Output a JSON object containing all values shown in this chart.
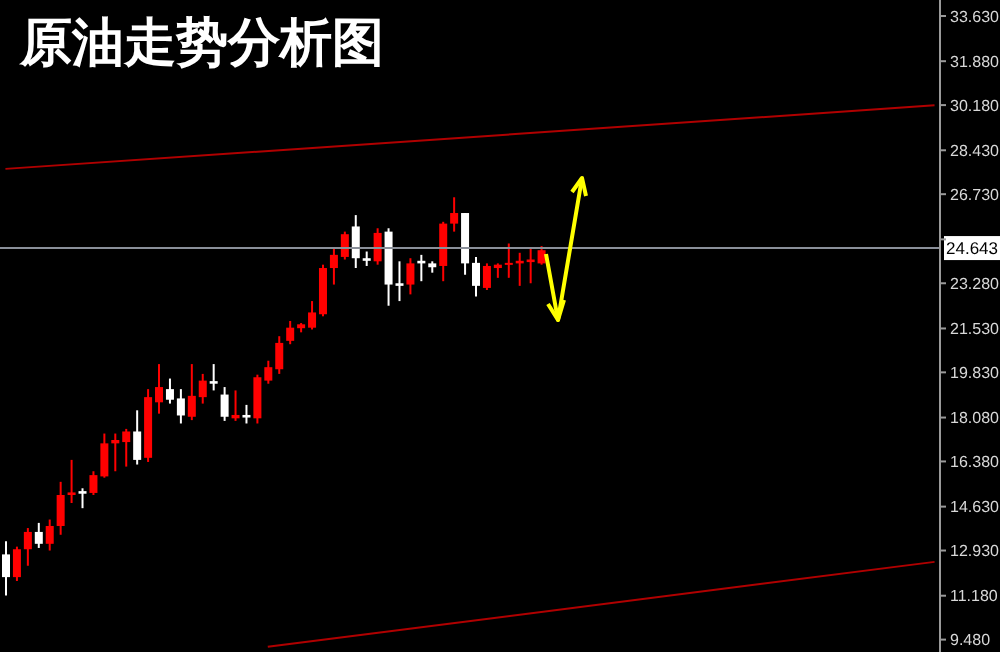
{
  "chart_data": {
    "type": "candlestick",
    "title": "原油走势分析图",
    "categories": [
      null,
      null,
      null,
      null,
      null,
      null,
      null,
      null,
      null,
      null,
      null,
      null,
      null,
      null,
      null,
      null,
      null,
      null,
      null,
      null,
      null,
      null,
      null,
      null,
      null,
      null,
      null,
      null,
      null,
      null,
      null,
      null,
      null,
      null,
      null,
      null,
      null,
      null,
      null,
      null,
      null,
      null,
      null,
      null,
      null,
      null,
      null,
      null,
      null,
      null,
      null,
      null,
      null,
      null,
      null,
      null,
      null,
      null,
      null,
      null,
      null,
      null,
      null,
      null,
      null,
      null,
      null,
      null,
      null,
      null,
      null,
      null,
      null,
      null,
      null,
      null,
      null,
      null,
      null,
      null,
      null,
      null,
      null,
      null,
      null,
      null
    ],
    "ohlc": [
      [
        12.78,
        13.29,
        11.19,
        11.9
      ],
      [
        11.9,
        13.08,
        11.75,
        12.98
      ],
      [
        12.98,
        13.8,
        12.34,
        13.65
      ],
      [
        13.65,
        14.0,
        13.03,
        13.19
      ],
      [
        13.19,
        14.13,
        12.93,
        13.88
      ],
      [
        13.88,
        15.59,
        13.54,
        15.08
      ],
      [
        15.08,
        16.44,
        14.77,
        15.18
      ],
      [
        15.23,
        15.34,
        14.57,
        15.13
      ],
      [
        15.16,
        16.0,
        15.08,
        15.85
      ],
      [
        15.8,
        17.46,
        15.75,
        17.08
      ],
      [
        17.08,
        17.46,
        16.0,
        17.21
      ],
      [
        17.13,
        17.64,
        16.18,
        17.54
      ],
      [
        17.54,
        18.36,
        16.26,
        16.44
      ],
      [
        16.52,
        19.18,
        16.36,
        18.87
      ],
      [
        18.67,
        20.15,
        18.23,
        19.26
      ],
      [
        19.18,
        19.59,
        18.62,
        18.77
      ],
      [
        18.82,
        19.18,
        17.85,
        18.16
      ],
      [
        18.11,
        20.15,
        17.98,
        18.92
      ],
      [
        18.87,
        19.77,
        18.62,
        19.51
      ],
      [
        19.49,
        20.15,
        19.13,
        19.39
      ],
      [
        18.97,
        19.26,
        17.95,
        18.11
      ],
      [
        18.05,
        19.13,
        17.95,
        18.18
      ],
      [
        18.18,
        18.57,
        17.85,
        18.08
      ],
      [
        18.05,
        19.74,
        17.85,
        19.64
      ],
      [
        19.51,
        20.28,
        19.39,
        20.03
      ],
      [
        19.95,
        21.23,
        19.77,
        20.97
      ],
      [
        21.05,
        21.82,
        20.92,
        21.56
      ],
      [
        21.54,
        21.74,
        21.38,
        21.69
      ],
      [
        21.56,
        22.59,
        21.49,
        22.15
      ],
      [
        22.08,
        24.0,
        22.0,
        23.87
      ],
      [
        23.87,
        24.64,
        23.23,
        24.38
      ],
      [
        24.3,
        25.28,
        24.2,
        25.18
      ],
      [
        25.48,
        25.92,
        23.87,
        24.25
      ],
      [
        24.25,
        24.51,
        23.95,
        24.15
      ],
      [
        24.13,
        25.41,
        24.0,
        25.23
      ],
      [
        25.28,
        25.41,
        22.41,
        23.23
      ],
      [
        23.28,
        24.13,
        22.59,
        23.18
      ],
      [
        23.23,
        24.25,
        22.85,
        24.05
      ],
      [
        24.15,
        24.38,
        23.36,
        24.05
      ],
      [
        24.05,
        24.13,
        23.69,
        23.9
      ],
      [
        23.95,
        25.66,
        23.36,
        25.59
      ],
      [
        25.59,
        26.61,
        25.28,
        26.0
      ],
      [
        26.0,
        26.0,
        23.61,
        24.05
      ],
      [
        24.07,
        24.3,
        22.77,
        23.18
      ],
      [
        23.1,
        24.05,
        23.02,
        23.95
      ],
      [
        23.87,
        24.05,
        23.49,
        24.0
      ],
      [
        24.0,
        24.82,
        23.49,
        24.07
      ],
      [
        24.05,
        24.46,
        23.18,
        24.15
      ],
      [
        24.1,
        24.61,
        23.28,
        24.2
      ],
      [
        24.05,
        24.72,
        24.0,
        24.56
      ],
      null,
      null,
      null,
      null,
      null,
      null,
      null,
      null,
      null,
      null,
      null,
      null,
      null,
      null,
      null,
      null,
      null,
      null,
      null,
      null,
      null,
      null,
      null,
      null,
      null,
      null,
      null,
      null,
      null,
      null,
      null,
      null,
      null,
      null,
      null,
      null
    ],
    "colors": [
      "#ffffff",
      "#ff0000",
      "#ff0000",
      "#ffffff",
      "#ff0000",
      "#ff0000",
      "#ff0000",
      "#ffffff",
      "#ff0000",
      "#ff0000",
      "#ff0000",
      "#ff0000",
      "#ffffff",
      "#ff0000",
      "#ff0000",
      "#ffffff",
      "#ffffff",
      "#ff0000",
      "#ff0000",
      "#ffffff",
      "#ffffff",
      "#ff0000",
      "#ffffff",
      "#ff0000",
      "#ff0000",
      "#ff0000",
      "#ff0000",
      "#ff0000",
      "#ff0000",
      "#ff0000",
      "#ff0000",
      "#ff0000",
      "#ffffff",
      "#ffffff",
      "#ff0000",
      "#ffffff",
      "#ffffff",
      "#ff0000",
      "#ffffff",
      "#ffffff",
      "#ff0000",
      "#ff0000",
      "#ffffff",
      "#ffffff",
      "#ff0000",
      "#ff0000",
      "#ff0000",
      "#ff0000",
      "#ff0000",
      "#ff0000",
      null,
      null,
      null,
      null,
      null,
      null,
      null,
      null,
      null,
      null,
      null,
      null,
      null,
      null,
      null,
      null,
      null,
      null,
      null,
      null,
      null,
      null,
      null,
      null,
      null,
      null,
      null,
      null,
      null,
      null,
      null,
      null,
      null,
      null,
      null,
      null
    ],
    "series": [
      {
        "type": "line",
        "color": "#b00000",
        "values": [
          27.71,
          null,
          null,
          null,
          null,
          null,
          null,
          null,
          null,
          null,
          null,
          null,
          null,
          null,
          null,
          null,
          null,
          null,
          null,
          null,
          null,
          null,
          null,
          null,
          null,
          null,
          null,
          null,
          null,
          null,
          null,
          null,
          null,
          null,
          null,
          null,
          null,
          null,
          null,
          null,
          null,
          null,
          null,
          null,
          null,
          null,
          null,
          null,
          null,
          null,
          null,
          null,
          null,
          null,
          null,
          null,
          null,
          null,
          null,
          null,
          null,
          null,
          null,
          null,
          null,
          null,
          null,
          null,
          null,
          null,
          null,
          null,
          null,
          null,
          null,
          null,
          null,
          null,
          null,
          null,
          null,
          null,
          null,
          null,
          null,
          30.17
        ]
      },
      {
        "type": "line",
        "color": "#b00000",
        "values": [
          null,
          null,
          null,
          null,
          null,
          null,
          null,
          null,
          null,
          null,
          null,
          null,
          null,
          null,
          null,
          null,
          null,
          null,
          null,
          null,
          null,
          null,
          null,
          null,
          9.2,
          null,
          null,
          null,
          null,
          null,
          null,
          null,
          null,
          null,
          null,
          null,
          null,
          null,
          null,
          null,
          null,
          null,
          null,
          null,
          null,
          null,
          null,
          null,
          null,
          null,
          null,
          null,
          null,
          null,
          null,
          null,
          null,
          null,
          null,
          null,
          null,
          null,
          null,
          null,
          null,
          null,
          null,
          null,
          null,
          null,
          null,
          null,
          null,
          null,
          null,
          null,
          null,
          null,
          null,
          null,
          null,
          null,
          null,
          null,
          null,
          12.49
        ]
      }
    ],
    "ylim": [
      9.0,
      34.25
    ],
    "yticks": [
      {
        "value": 9.48,
        "label": "9.480"
      },
      {
        "value": 11.18,
        "label": "11.180"
      },
      {
        "value": 12.93,
        "label": "12.930"
      },
      {
        "value": 14.63,
        "label": "14.630"
      },
      {
        "value": 16.38,
        "label": "16.380"
      },
      {
        "value": 18.08,
        "label": "18.080"
      },
      {
        "value": 19.83,
        "label": "19.830"
      },
      {
        "value": 21.53,
        "label": "21.530"
      },
      {
        "value": 23.28,
        "label": "23.280"
      },
      {
        "value": 24.98,
        "label": null
      },
      {
        "value": 26.73,
        "label": "26.730"
      },
      {
        "value": 28.43,
        "label": "28.430"
      },
      {
        "value": 30.18,
        "label": "30.180"
      },
      {
        "value": 31.88,
        "label": "31.880"
      },
      {
        "value": 33.63,
        "label": "33.630"
      }
    ],
    "ref_lines": [
      {
        "axis": "y",
        "value": 24.643,
        "label": "24.643",
        "color": "#8a8f99"
      }
    ],
    "tick_labels": "y"
  }
}
